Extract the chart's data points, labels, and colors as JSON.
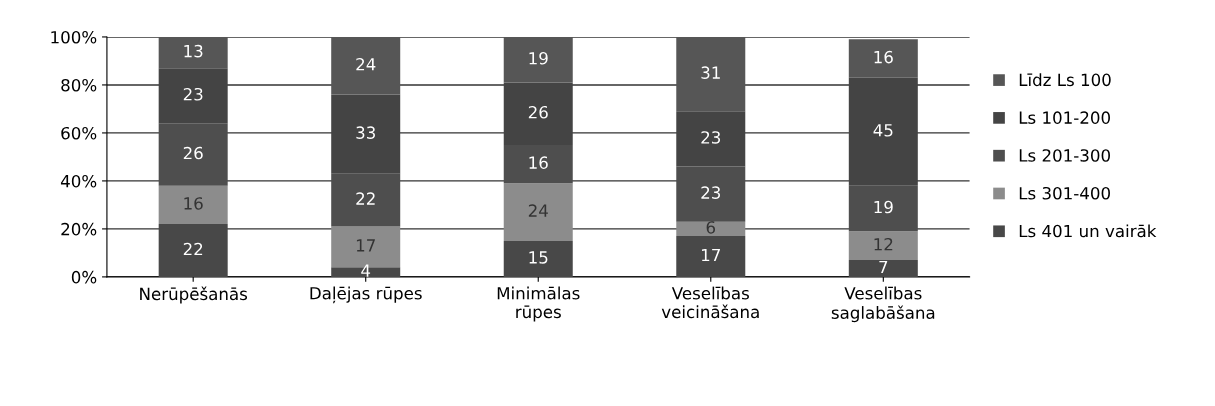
{
  "chart_data": {
    "type": "bar",
    "stacked": true,
    "categories": [
      "Nerūpēšanās",
      "Daļējas rūpes",
      "Minimālas\nrūpes",
      "Veselības\nveicināšana",
      "Veselības\nsaglabāšana"
    ],
    "series": [
      {
        "name": "Ls 401 un vairāk",
        "color": "#484848",
        "values": [
          22,
          4,
          15,
          17,
          7
        ]
      },
      {
        "name": "Ls 301-400",
        "color": "#8c8c8c",
        "values": [
          16,
          17,
          24,
          6,
          12
        ]
      },
      {
        "name": "Ls 201-300",
        "color": "#4e4e4e",
        "values": [
          26,
          22,
          16,
          23,
          19
        ]
      },
      {
        "name": "Ls 101-200",
        "color": "#444444",
        "values": [
          23,
          33,
          26,
          23,
          45
        ]
      },
      {
        "name": "Līdz Ls 100",
        "color": "#565656",
        "values": [
          13,
          24,
          19,
          31,
          16
        ]
      }
    ],
    "ylim": [
      0,
      100
    ],
    "yticks": [
      {
        "value": 0,
        "label": "0%"
      },
      {
        "value": 20,
        "label": "20%"
      },
      {
        "value": 40,
        "label": "40%"
      },
      {
        "value": 60,
        "label": "60%"
      },
      {
        "value": 80,
        "label": "80%"
      },
      {
        "value": 100,
        "label": "100%"
      }
    ],
    "data_labels": true,
    "grid": "y",
    "legend": "right"
  }
}
